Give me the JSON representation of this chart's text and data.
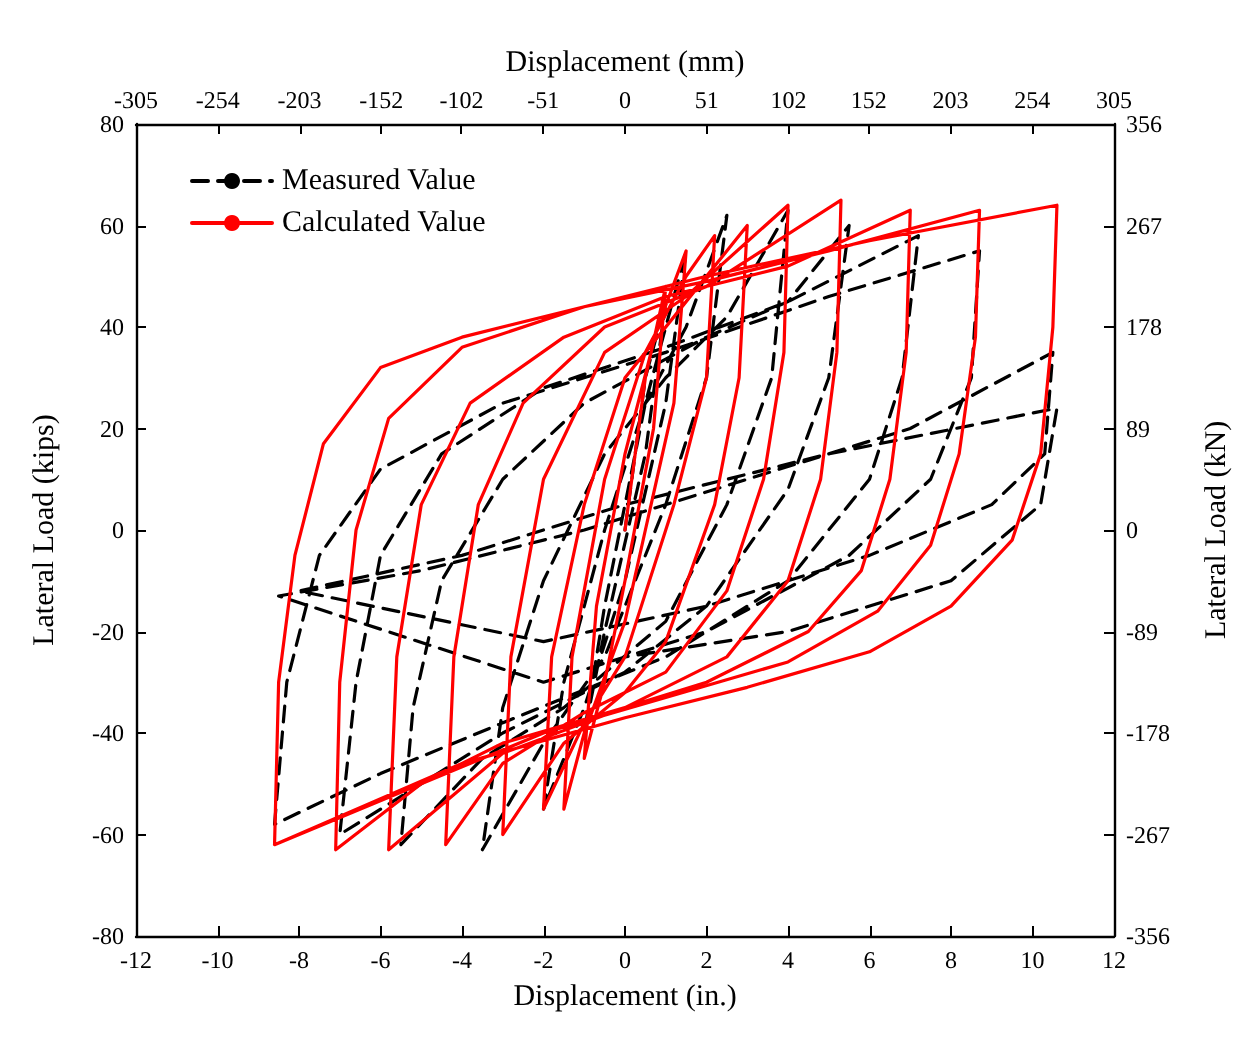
{
  "chart_data": {
    "type": "line",
    "xlabel": "Displacement (in.)",
    "ylabel": "Lateral Load (kips)",
    "x2label": "Displacement (mm)",
    "y2label": "Lateral Load (kN)",
    "xlim": [
      -12,
      12
    ],
    "xticks": [
      -12,
      -10,
      -8,
      -6,
      -4,
      -2,
      0,
      2,
      4,
      6,
      8,
      10,
      12
    ],
    "ylim": [
      -80,
      80
    ],
    "yticks": [
      -80,
      -60,
      -40,
      -20,
      0,
      20,
      40,
      60,
      80
    ],
    "x2lim": [
      -305,
      305
    ],
    "x2ticks": [
      -305,
      -254,
      -203,
      -152,
      -102,
      -51,
      0,
      51,
      102,
      152,
      203,
      254,
      305
    ],
    "y2lim": [
      -356,
      356
    ],
    "y2ticks": [
      -356,
      -267,
      -178,
      -89,
      0,
      89,
      178,
      267,
      356
    ],
    "legend": "top left",
    "grid": false,
    "marker": "none",
    "series": [
      {
        "name": "Measured Value",
        "color": "#000000",
        "line_style": "dashed",
        "x": [
          0,
          0.5,
          1,
          0.5,
          -0.5,
          -1,
          -0.5,
          0.5,
          1.5,
          1,
          0,
          -1,
          -2,
          -1.5,
          -0.5,
          0.5,
          1.5,
          2.5,
          2,
          1,
          -0.5,
          -2,
          -3.5,
          -3,
          -2,
          -0.5,
          1,
          2.5,
          4,
          3.6,
          2.5,
          1,
          -1.5,
          -3.5,
          -5.5,
          -5.2,
          -4.5,
          -3,
          -1,
          2,
          4,
          5.5,
          5,
          4,
          2,
          0,
          -3,
          -7,
          -6.6,
          -6,
          -4.5,
          -2,
          1,
          4,
          7.2,
          6.8,
          6,
          4,
          1,
          -3,
          -6,
          -8.6,
          -8.3,
          -7.5,
          -6,
          -3,
          1,
          5,
          8.7,
          8.5,
          7.5,
          5.5,
          2,
          -2,
          -8.5,
          -5,
          -1,
          3,
          7,
          10.5,
          10.3,
          9,
          6,
          2,
          -2,
          -8,
          -4,
          0,
          5,
          10.6,
          10.2,
          8,
          4,
          0
        ],
        "values": [
          0,
          30,
          45,
          15,
          -20,
          -40,
          -15,
          25,
          55,
          25,
          -10,
          -35,
          -55,
          -30,
          0,
          25,
          40,
          62,
          30,
          5,
          -25,
          -42,
          -63,
          -35,
          -10,
          15,
          30,
          42,
          63,
          30,
          5,
          -18,
          -35,
          -45,
          -62,
          -35,
          -10,
          10,
          25,
          38,
          45,
          60,
          30,
          8,
          -15,
          -28,
          -40,
          -60,
          -30,
          -5,
          15,
          28,
          36,
          45,
          58,
          30,
          10,
          -10,
          -25,
          -38,
          -48,
          -58,
          -30,
          -5,
          12,
          25,
          35,
          46,
          55,
          30,
          10,
          -5,
          -20,
          -30,
          -13,
          -8,
          0,
          10,
          20,
          35,
          15,
          5,
          -5,
          -15,
          -22,
          -12,
          -5,
          5,
          15,
          24,
          5,
          -10,
          -20,
          -25
        ]
      },
      {
        "name": "Calculated Value",
        "color": "#ff0000",
        "line_style": "solid",
        "x": [
          0,
          0.5,
          1,
          0.7,
          0,
          -0.5,
          -1,
          -0.7,
          0,
          0.8,
          1.5,
          1.2,
          0.5,
          0,
          -1,
          -1.5,
          -1.3,
          -0.5,
          0.5,
          1.5,
          2.2,
          2,
          1.2,
          0,
          -1,
          -2,
          -1.8,
          -1,
          0,
          1.5,
          3,
          2.8,
          2.2,
          1,
          0,
          -1.5,
          -3,
          -2.8,
          -2,
          -0.5,
          1.5,
          4,
          3.9,
          3.4,
          2.5,
          1,
          -1,
          -3,
          -4.4,
          -4.2,
          -3.6,
          -2.5,
          -0.5,
          2,
          5.3,
          5.2,
          4.8,
          4,
          2.5,
          0,
          -3,
          -5.8,
          -5.6,
          -5,
          -3.8,
          -1.5,
          1,
          4,
          7,
          6.9,
          6.5,
          5.8,
          4.5,
          2,
          0,
          -3,
          -5,
          -7.1,
          -7,
          -6.6,
          -5.8,
          -4,
          -1,
          2,
          5,
          8.7,
          8.6,
          8.2,
          7.5,
          6.2,
          4,
          1,
          -2,
          -5,
          -8.6,
          -8.5,
          -8.1,
          -7.4,
          -6,
          -4,
          -1,
          2,
          6,
          10.6,
          10.5,
          10.2,
          9.5,
          8,
          6,
          3,
          0,
          -4,
          -8.6
        ],
        "values": [
          0,
          30,
          48,
          20,
          -10,
          -30,
          -45,
          -15,
          15,
          40,
          55,
          25,
          0,
          -18,
          -40,
          -55,
          -25,
          10,
          35,
          50,
          58,
          30,
          5,
          -25,
          -38,
          -55,
          -25,
          5,
          30,
          45,
          60,
          30,
          5,
          -22,
          -32,
          -42,
          -60,
          -25,
          10,
          35,
          46,
          64,
          35,
          10,
          -12,
          -28,
          -36,
          -46,
          -62,
          -25,
          5,
          25,
          40,
          48,
          65,
          35,
          10,
          -10,
          -25,
          -35,
          -44,
          -63,
          -25,
          5,
          25,
          38,
          46,
          52,
          63,
          35,
          10,
          -8,
          -20,
          -30,
          -35,
          -42,
          -50,
          -63,
          -30,
          0,
          22,
          36,
          44,
          49,
          55,
          63,
          38,
          15,
          -3,
          -16,
          -26,
          -33,
          -40,
          -50,
          -62,
          -30,
          -5,
          17,
          32,
          38,
          44,
          50,
          57,
          64,
          40,
          15,
          -2,
          -15,
          -24,
          -31,
          -37,
          -46,
          -62
        ]
      }
    ]
  }
}
